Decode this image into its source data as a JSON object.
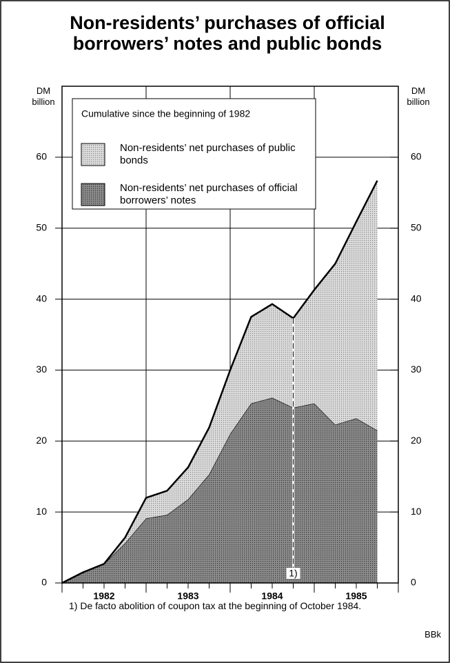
{
  "chart_data": {
    "type": "stacked-area",
    "title": "Non-residents’ purchases of official borrowers’ notes and public bonds",
    "y_label": "DM billion",
    "y2_label": "DM billion",
    "legend_title": "Cumulative since the beginning of 1982",
    "x": [
      1982,
      1982.25,
      1982.5,
      1982.75,
      1983,
      1983.25,
      1983.5,
      1983.75,
      1984,
      1984.25,
      1984.5,
      1984.75,
      1985,
      1985.25,
      1985.5,
      1985.75
    ],
    "xlim": [
      1982,
      1986
    ],
    "xticks": [
      {
        "value": 1982.5,
        "label": "1982"
      },
      {
        "value": 1983.5,
        "label": "1983"
      },
      {
        "value": 1984.5,
        "label": "1984"
      },
      {
        "value": 1985.5,
        "label": "1985"
      }
    ],
    "ylim": [
      0,
      70
    ],
    "yticks": [
      0,
      10,
      20,
      30,
      40,
      50,
      60
    ],
    "y2lim": [
      0,
      70
    ],
    "y2ticks": [
      0,
      10,
      20,
      30,
      40,
      50,
      60
    ],
    "grid": true,
    "series": [
      {
        "name": "Non-residents’ net purchases of official borrowers’ notes",
        "color": "#8c8c8c",
        "values": [
          0,
          1.5,
          2.7,
          5.6,
          9.1,
          9.6,
          11.8,
          15.3,
          21,
          25.3,
          26.1,
          24.7,
          25.3,
          22.3,
          23.2,
          21.5
        ]
      },
      {
        "name": "Non-residents’ net purchases of public bonds",
        "color": "#dcdcdc",
        "values": [
          0,
          0,
          0,
          0.8,
          2.9,
          3.4,
          4.5,
          6.6,
          9,
          12.2,
          13.2,
          12.6,
          16,
          22.7,
          27.7,
          35.2
        ]
      }
    ],
    "annotation": {
      "x": 1984.75,
      "label": "1)"
    },
    "footnote": "1) De facto abolition of coupon tax at the beginning of October 1984.",
    "source": "BBk"
  }
}
